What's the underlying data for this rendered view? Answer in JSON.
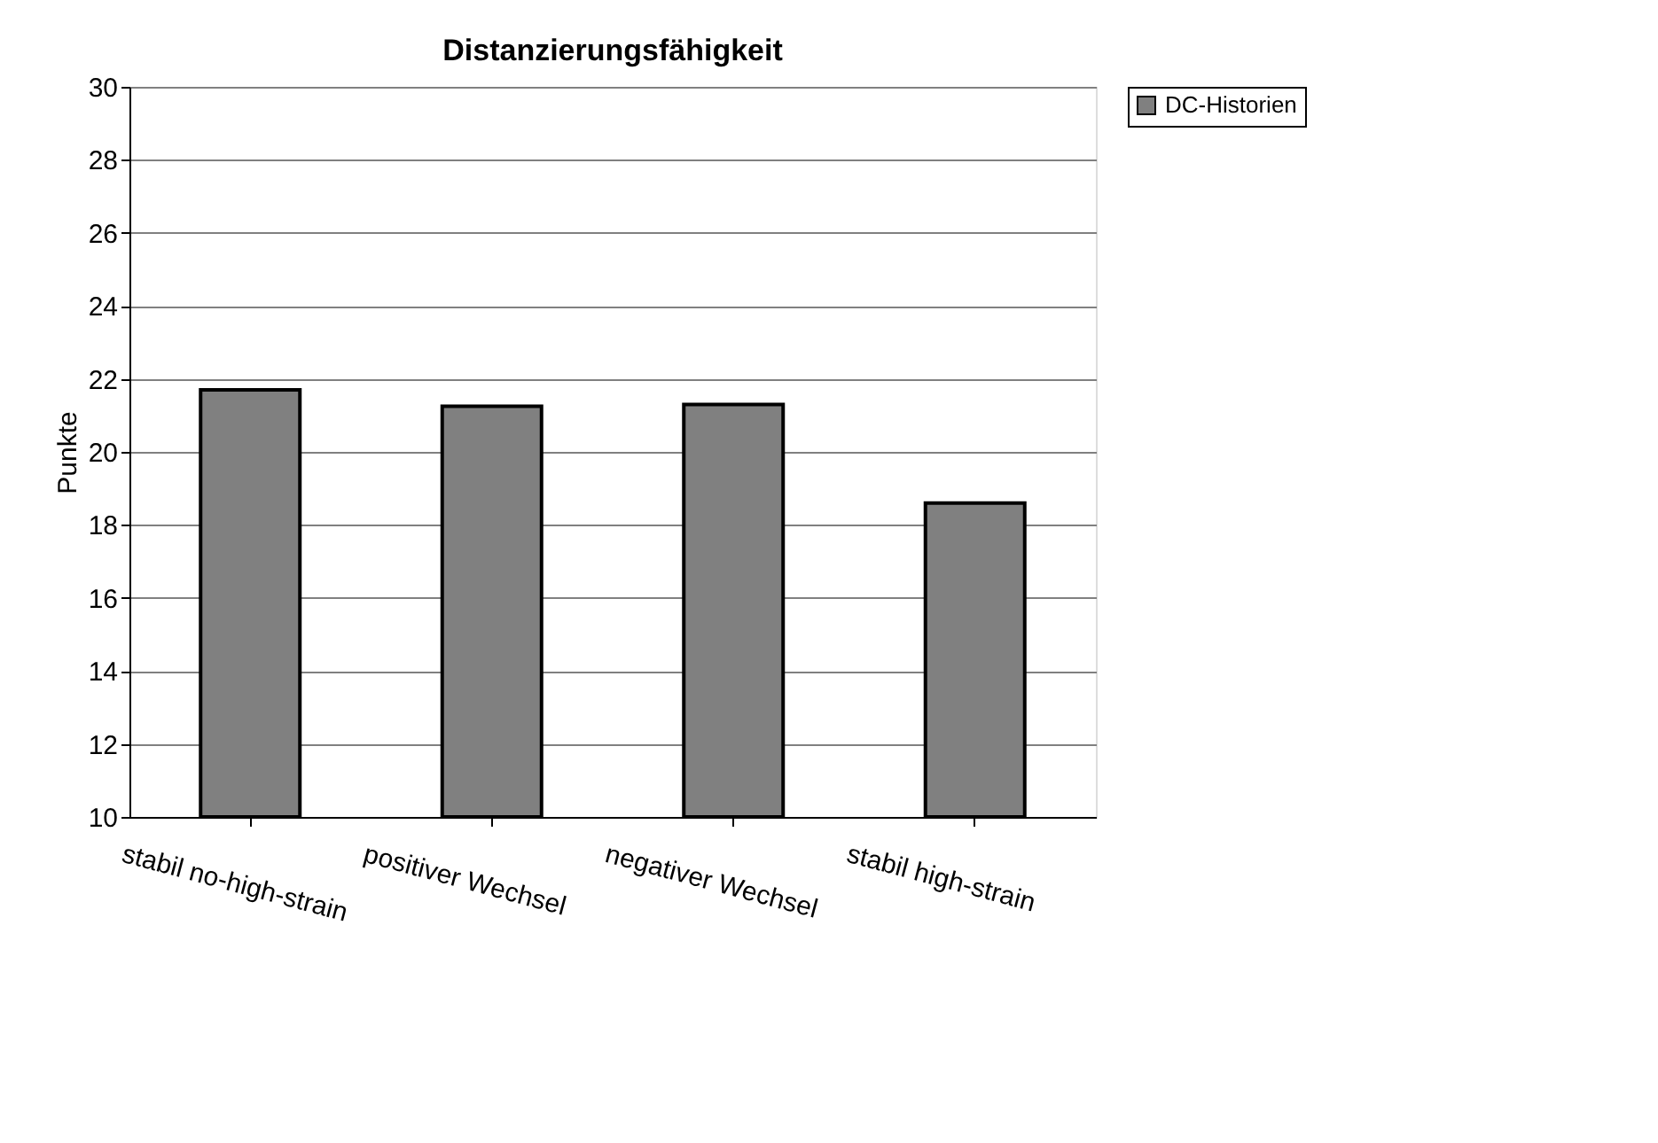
{
  "chart_data": {
    "type": "bar",
    "title": "Distanzierungsfähigkeit",
    "ylabel": "Punkte",
    "categories": [
      "stabil no-high-strain",
      "positiver Wechsel",
      "negativer Wechsel",
      "stabil high-strain"
    ],
    "series": [
      {
        "name": "DC-Historien",
        "color": "#808080",
        "values": [
          21.7,
          21.25,
          21.3,
          18.6
        ]
      }
    ],
    "ylim": [
      10,
      30
    ],
    "yticks": [
      10,
      12,
      14,
      16,
      18,
      20,
      22,
      24,
      26,
      28,
      30
    ],
    "grid": "y",
    "legend": "right"
  }
}
